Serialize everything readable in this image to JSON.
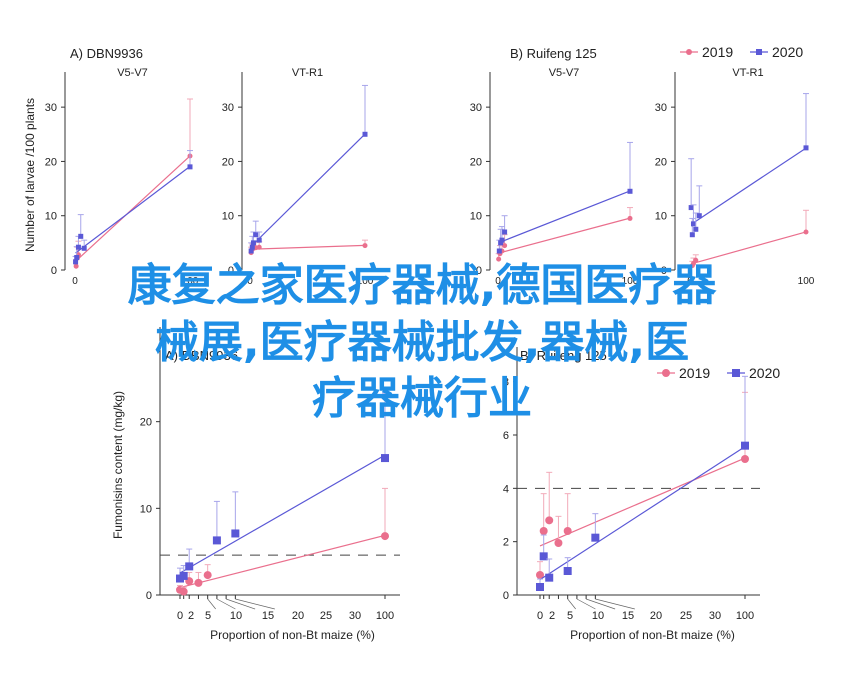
{
  "overlay": {
    "line1": "康复之家医疗器械,德国医疗器",
    "line2": "械展,医疗器械批发,器械,医",
    "line3": "疗器械行业"
  },
  "colors": {
    "y2019": "#ea6f8d",
    "y2020": "#5a58d6",
    "axis": "#333333",
    "errorbar_2019": "#f2aab9",
    "errorbar_2020": "#a7a5ea"
  },
  "legend": [
    {
      "label": "2019",
      "marker": "circle"
    },
    {
      "label": "2020",
      "marker": "square"
    }
  ],
  "chart_data": [
    {
      "type": "scatter",
      "panel": "A) DBN9936",
      "subtitle": "V5-V7",
      "ylabel": "Number of larvae /100 plants",
      "ylim": [
        0,
        35
      ],
      "yticks": [
        0,
        10,
        20,
        30
      ],
      "xticks": [
        0,
        100
      ],
      "series": [
        {
          "name": "2019",
          "points": [
            [
              1,
              0.7,
              1.2
            ],
            [
              2,
              2.2,
              2.0
            ],
            [
              3,
              2.8,
              2.5
            ],
            [
              100,
              21,
              10.5
            ]
          ]
        },
        {
          "name": "2020",
          "points": [
            [
              0.5,
              1.5,
              1.0
            ],
            [
              1.5,
              2.3,
              2.0
            ],
            [
              3,
              4.2,
              2.0
            ],
            [
              5,
              6.2,
              4.0
            ],
            [
              8,
              4.0,
              1.5
            ],
            [
              100,
              19,
              3.0
            ]
          ]
        }
      ]
    },
    {
      "type": "scatter",
      "panel": "",
      "subtitle": "VT-R1",
      "ylim": [
        0,
        35
      ],
      "yticks": [
        0,
        10,
        20,
        30
      ],
      "xticks": [
        0,
        100
      ],
      "series": [
        {
          "name": "2019",
          "points": [
            [
              1,
              3.2,
              1.0
            ],
            [
              2,
              3.8,
              1.0
            ],
            [
              3,
              4.0,
              1.0
            ],
            [
              5,
              4.1,
              1.0
            ],
            [
              8,
              4.2,
              1.0
            ],
            [
              100,
              4.5,
              1.0
            ]
          ]
        },
        {
          "name": "2020",
          "points": [
            [
              1,
              3.5,
              1.5
            ],
            [
              2,
              4.2,
              2.0
            ],
            [
              3,
              5.0,
              2.0
            ],
            [
              5,
              6.5,
              2.5
            ],
            [
              8,
              5.5,
              1.5
            ],
            [
              100,
              25,
              9.0
            ]
          ]
        }
      ]
    },
    {
      "type": "scatter",
      "panel": "B) Ruifeng 125",
      "subtitle": "V5-V7",
      "ylim": [
        0,
        35
      ],
      "yticks": [
        0,
        10,
        20,
        30
      ],
      "xticks": [
        0,
        100
      ],
      "series": [
        {
          "name": "2019",
          "points": [
            [
              0.5,
              2.0,
              1.0
            ],
            [
              1.5,
              3.0,
              1.5
            ],
            [
              3,
              3.5,
              1.5
            ],
            [
              5,
              4.5,
              2.0
            ],
            [
              100,
              9.5,
              2.0
            ]
          ]
        },
        {
          "name": "2020",
          "points": [
            [
              1,
              3.5,
              2.0
            ],
            [
              2,
              5.0,
              2.5
            ],
            [
              3,
              5.5,
              2.5
            ],
            [
              5,
              7.0,
              3.0
            ],
            [
              100,
              14.5,
              9.0
            ]
          ]
        }
      ]
    },
    {
      "type": "scatter",
      "panel": "",
      "subtitle": "VT-R1",
      "ylim": [
        0,
        35
      ],
      "yticks": [
        0,
        10,
        20,
        30
      ],
      "xticks": [
        0,
        100
      ],
      "series": [
        {
          "name": "2019",
          "points": [
            [
              2,
              0.8,
              0.8
            ],
            [
              3,
              1.2,
              1.0
            ],
            [
              5,
              1.8,
              1.0
            ],
            [
              100,
              7.0,
              4.0
            ]
          ]
        },
        {
          "name": "2020",
          "points": [
            [
              1,
              11.5,
              9.0
            ],
            [
              2,
              6.5,
              3.0
            ],
            [
              3,
              8.5,
              3.5
            ],
            [
              5,
              7.5,
              3.0
            ],
            [
              8,
              10.0,
              5.5
            ],
            [
              100,
              22.5,
              10.0
            ]
          ]
        }
      ]
    },
    {
      "type": "scatter",
      "panel": "A) DBN9936",
      "ylabel": "Fumonisins content (mg/kg)",
      "xlabel": "Proportion of non-Bt maize (%)",
      "ylim": [
        0,
        30
      ],
      "yticks": [
        0,
        10,
        20
      ],
      "xticks": [
        0,
        2,
        5,
        10,
        15,
        20,
        25,
        30,
        100
      ],
      "threshold": 4.6,
      "series": [
        {
          "name": "2019",
          "points": [
            [
              0,
              0.6,
              0.5
            ],
            [
              2,
              0.4,
              0.5
            ],
            [
              5,
              1.6,
              1.0
            ],
            [
              10,
              1.4,
              1.2
            ],
            [
              15,
              2.3,
              1.2
            ],
            [
              100,
              6.8,
              5.5
            ]
          ]
        },
        {
          "name": "2020",
          "points": [
            [
              0,
              1.9,
              1.2
            ],
            [
              2,
              2.2,
              1.2
            ],
            [
              5,
              3.3,
              2.0
            ],
            [
              20,
              6.3,
              4.5
            ],
            [
              30,
              7.1,
              4.8
            ],
            [
              100,
              15.8,
              7.5
            ]
          ]
        }
      ]
    },
    {
      "type": "scatter",
      "panel": "B) Ruifeng 125",
      "xlabel": "Proportion of non-Bt maize (%)",
      "ylim": [
        0,
        9
      ],
      "yticks": [
        0,
        2,
        4,
        6,
        8
      ],
      "xticks": [
        0,
        2,
        5,
        10,
        15,
        20,
        25,
        30,
        100
      ],
      "threshold": 4.0,
      "series": [
        {
          "name": "2019",
          "points": [
            [
              0,
              0.75,
              0.5
            ],
            [
              2,
              2.4,
              1.4
            ],
            [
              5,
              2.8,
              1.8
            ],
            [
              10,
              1.95,
              1.0
            ],
            [
              15,
              2.4,
              1.4
            ],
            [
              100,
              5.1,
              2.5
            ]
          ]
        },
        {
          "name": "2020",
          "points": [
            [
              0,
              0.3,
              0.3
            ],
            [
              2,
              1.45,
              0.8
            ],
            [
              5,
              0.65,
              0.7
            ],
            [
              15,
              0.9,
              0.5
            ],
            [
              30,
              2.15,
              0.9
            ],
            [
              100,
              5.6,
              2.6
            ]
          ]
        }
      ]
    }
  ]
}
